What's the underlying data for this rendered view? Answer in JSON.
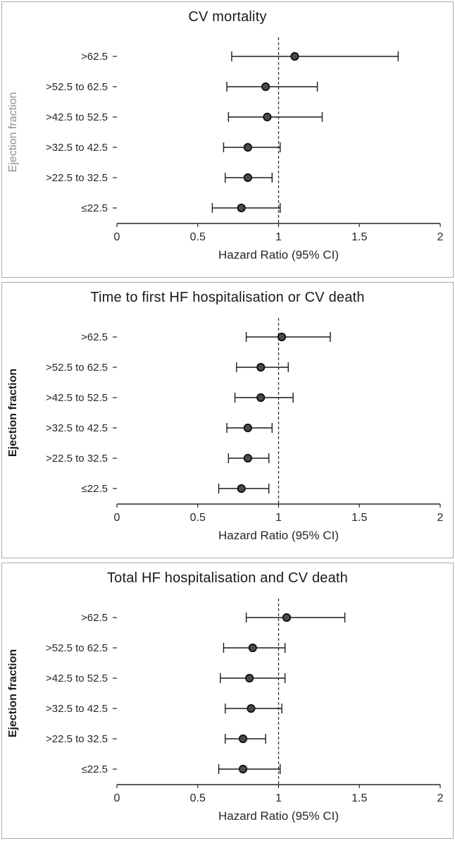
{
  "style": {
    "panel_border": "#ababab",
    "axis_color": "#262626",
    "text_color": "#262626",
    "ci_color": "#1a1a1a",
    "ref_color": "#333333",
    "marker_fill": "#4a4a4a",
    "marker_stroke": "#111111"
  },
  "chart_data": [
    {
      "type": "scatter",
      "subtype": "forest-plot",
      "title": "CV mortality",
      "xlabel": "Hazard Ratio (95% CI)",
      "ylabel": "Ejection fraction",
      "ylabel_color": "#8f8f8f",
      "ylabel_bold": false,
      "xlim": [
        0,
        2
      ],
      "xticks": [
        0,
        0.5,
        1,
        1.5,
        2
      ],
      "xtick_labels": [
        "0",
        "0.5",
        "1",
        "1.5",
        "2"
      ],
      "reference_line": 1,
      "grid": false,
      "categories": [
        ">62.5",
        ">52.5 to 62.5",
        ">42.5 to 52.5",
        ">32.5 to 42.5",
        ">22.5 to 32.5",
        "≤22.5"
      ],
      "points": [
        {
          "hr": 1.1,
          "lo": 0.71,
          "hi": 1.74
        },
        {
          "hr": 0.92,
          "lo": 0.68,
          "hi": 1.24
        },
        {
          "hr": 0.93,
          "lo": 0.69,
          "hi": 1.27
        },
        {
          "hr": 0.81,
          "lo": 0.66,
          "hi": 1.01
        },
        {
          "hr": 0.81,
          "lo": 0.67,
          "hi": 0.96
        },
        {
          "hr": 0.77,
          "lo": 0.59,
          "hi": 1.01
        }
      ]
    },
    {
      "type": "scatter",
      "subtype": "forest-plot",
      "title": "Time to first HF hospitalisation or CV death",
      "xlabel": "Hazard Ratio (95% CI)",
      "ylabel": "Ejection fraction",
      "ylabel_color": "#1a1a1a",
      "ylabel_bold": true,
      "xlim": [
        0,
        2
      ],
      "xticks": [
        0,
        0.5,
        1,
        1.5,
        2
      ],
      "xtick_labels": [
        "0",
        "0.5",
        "1",
        "1.5",
        "2"
      ],
      "reference_line": 1,
      "grid": false,
      "categories": [
        ">62.5",
        ">52.5 to 62.5",
        ">42.5 to 52.5",
        ">32.5 to 42.5",
        ">22.5 to 32.5",
        "≤22.5"
      ],
      "points": [
        {
          "hr": 1.02,
          "lo": 0.8,
          "hi": 1.32
        },
        {
          "hr": 0.89,
          "lo": 0.74,
          "hi": 1.06
        },
        {
          "hr": 0.89,
          "lo": 0.73,
          "hi": 1.09
        },
        {
          "hr": 0.81,
          "lo": 0.68,
          "hi": 0.96
        },
        {
          "hr": 0.81,
          "lo": 0.69,
          "hi": 0.94
        },
        {
          "hr": 0.77,
          "lo": 0.63,
          "hi": 0.94
        }
      ]
    },
    {
      "type": "scatter",
      "subtype": "forest-plot",
      "title": "Total HF hospitalisation and CV death",
      "xlabel": "Hazard Ratio (95% CI)",
      "ylabel": "Ejection fraction",
      "ylabel_color": "#1a1a1a",
      "ylabel_bold": true,
      "xlim": [
        0,
        2
      ],
      "xticks": [
        0,
        0.5,
        1,
        1.5,
        2
      ],
      "xtick_labels": [
        "0",
        "0.5",
        "1",
        "1.5",
        "2"
      ],
      "reference_line": 1,
      "grid": false,
      "categories": [
        ">62.5",
        ">52.5 to 62.5",
        ">42.5 to 52.5",
        ">32.5 to 42.5",
        ">22.5 to 32.5",
        "≤22.5"
      ],
      "points": [
        {
          "hr": 1.05,
          "lo": 0.8,
          "hi": 1.41
        },
        {
          "hr": 0.84,
          "lo": 0.66,
          "hi": 1.04
        },
        {
          "hr": 0.82,
          "lo": 0.64,
          "hi": 1.04
        },
        {
          "hr": 0.83,
          "lo": 0.67,
          "hi": 1.02
        },
        {
          "hr": 0.78,
          "lo": 0.67,
          "hi": 0.92
        },
        {
          "hr": 0.78,
          "lo": 0.63,
          "hi": 1.01
        }
      ]
    }
  ]
}
